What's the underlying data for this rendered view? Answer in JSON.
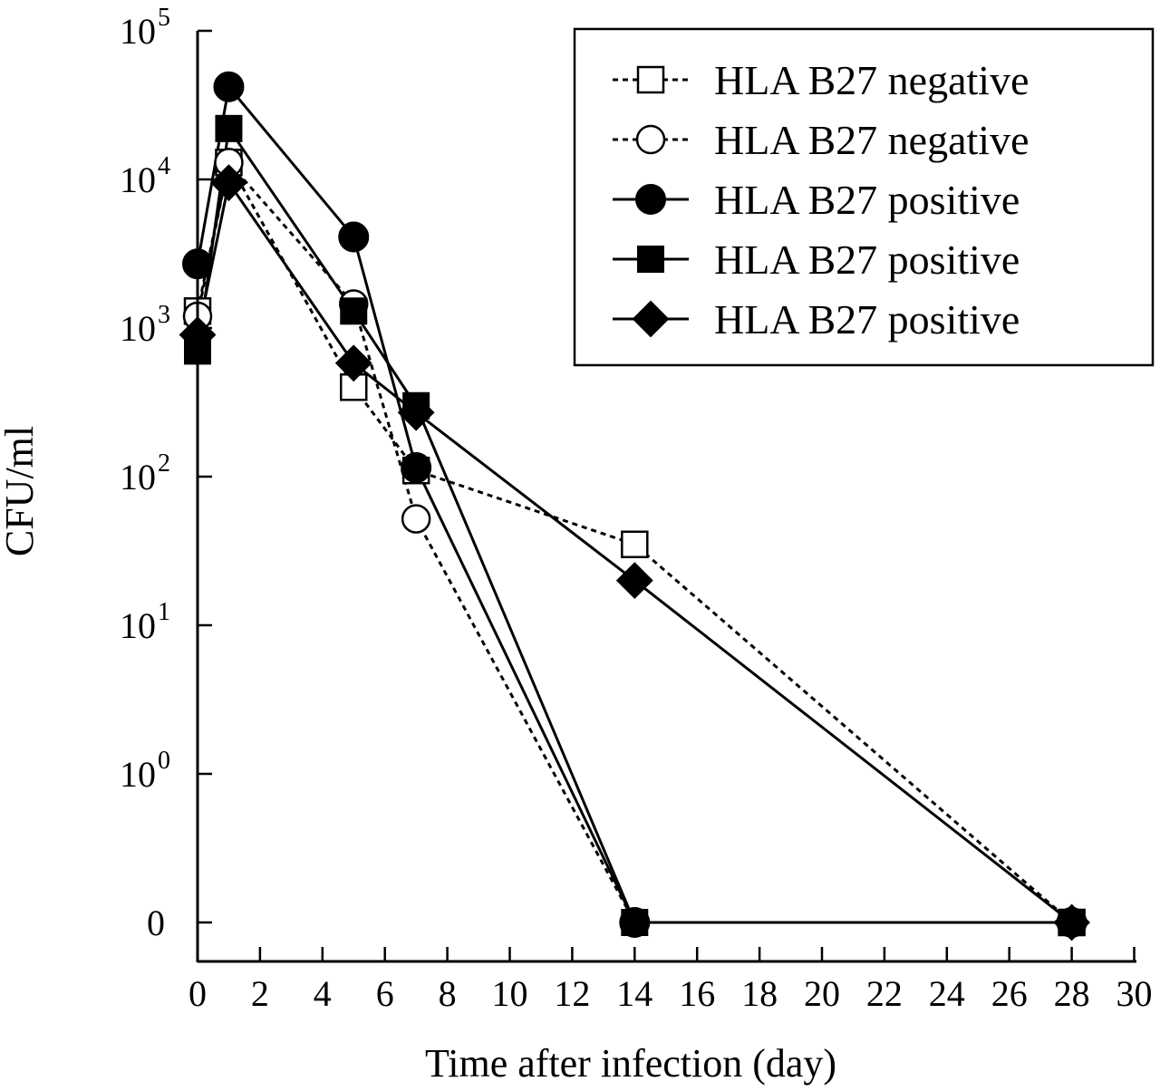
{
  "chart_data": {
    "type": "line",
    "xlabel": "Time after infection (day)",
    "ylabel": "CFU/ml",
    "xlim": [
      0,
      30
    ],
    "x_ticks": [
      "0",
      "2",
      "4",
      "6",
      "8",
      "10",
      "12",
      "14",
      "16",
      "18",
      "20",
      "22",
      "24",
      "26",
      "28",
      "30"
    ],
    "y_scale": "log (broken axis with 0 at bottom)",
    "y_ticks": [
      {
        "base": "0",
        "exp": ""
      },
      {
        "base": "10",
        "exp": "0"
      },
      {
        "base": "10",
        "exp": "1"
      },
      {
        "base": "10",
        "exp": "2"
      },
      {
        "base": "10",
        "exp": "3"
      },
      {
        "base": "10",
        "exp": "4"
      },
      {
        "base": "10",
        "exp": "5"
      }
    ],
    "grid": false,
    "legend_position": "top-right",
    "series": [
      {
        "name": "HLA B27 negative",
        "marker": "open-square",
        "line": "dashed",
        "x": [
          0,
          1,
          5,
          7,
          14,
          28
        ],
        "y": [
          1300,
          13000,
          400,
          110,
          35,
          0
        ]
      },
      {
        "name": "HLA B27 negative",
        "marker": "open-circle",
        "line": "dashed",
        "x": [
          0,
          1,
          5,
          7,
          14,
          28
        ],
        "y": [
          1200,
          13000,
          1450,
          52,
          0,
          0
        ]
      },
      {
        "name": "HLA B27 positive",
        "marker": "filled-circle",
        "line": "solid",
        "x": [
          0,
          1,
          5,
          7,
          14,
          28
        ],
        "y": [
          2700,
          42000,
          4100,
          115,
          0,
          0
        ]
      },
      {
        "name": "HLA B27 positive",
        "marker": "filled-square",
        "line": "solid",
        "x": [
          0,
          1,
          5,
          7,
          14,
          28
        ],
        "y": [
          700,
          22000,
          1300,
          300,
          0,
          0
        ]
      },
      {
        "name": "HLA B27 positive",
        "marker": "filled-diamond",
        "line": "solid",
        "x": [
          0,
          1,
          5,
          7,
          14,
          28
        ],
        "y": [
          900,
          9500,
          580,
          270,
          20,
          0
        ]
      }
    ]
  }
}
